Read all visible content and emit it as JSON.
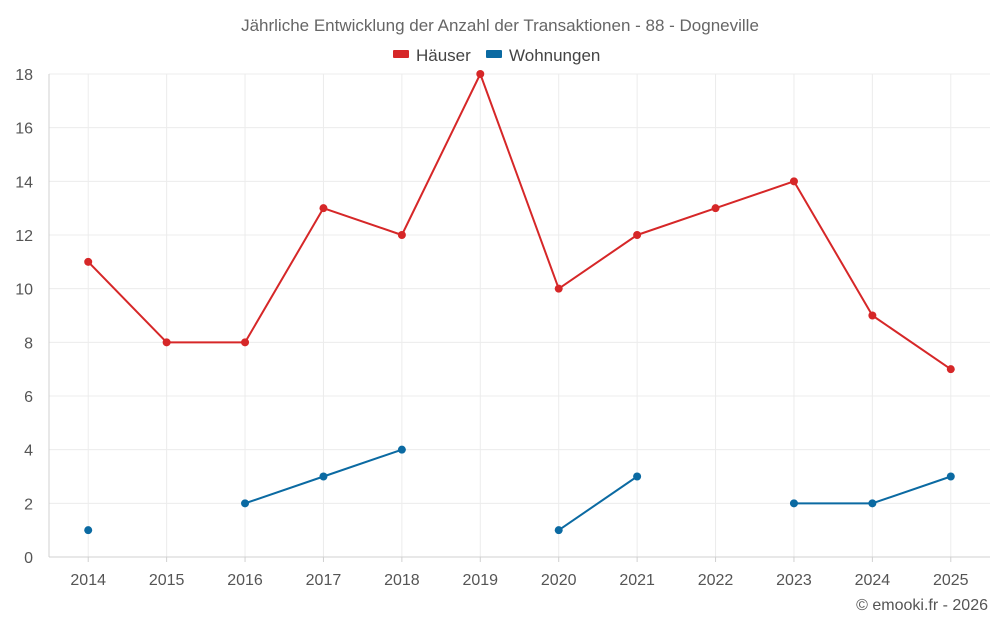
{
  "chart_data": {
    "type": "line",
    "title": "Jährliche Entwicklung der Anzahl der Transaktionen - 88 - Dogneville",
    "categories": [
      "2014",
      "2015",
      "2016",
      "2017",
      "2018",
      "2019",
      "2020",
      "2021",
      "2022",
      "2023",
      "2024",
      "2025"
    ],
    "series": [
      {
        "name": "Häuser",
        "color": "#d62728",
        "values": [
          11,
          8,
          8,
          13,
          12,
          18,
          10,
          12,
          13,
          14,
          9,
          7
        ]
      },
      {
        "name": "Wohnungen",
        "color": "#0b6aa2",
        "values": [
          1,
          null,
          2,
          3,
          4,
          null,
          1,
          3,
          null,
          2,
          2,
          3
        ]
      }
    ],
    "ylim": [
      0,
      18
    ],
    "yticks": [
      0,
      2,
      4,
      6,
      8,
      10,
      12,
      14,
      16,
      18
    ],
    "xlabel": "",
    "ylabel": "",
    "grid": true,
    "legend": "top-center"
  },
  "credit": "© emooki.fr - 2026"
}
